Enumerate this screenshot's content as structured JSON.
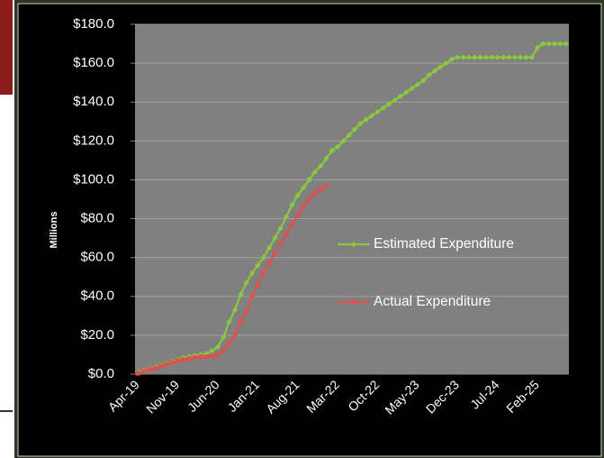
{
  "chart_data": {
    "type": "line",
    "y_label": "Millions",
    "categories": [
      "Apr-19",
      null,
      null,
      null,
      null,
      null,
      null,
      "Nov-19",
      null,
      null,
      null,
      null,
      null,
      null,
      "Jun-20",
      null,
      null,
      null,
      null,
      null,
      null,
      "Jan-21",
      null,
      null,
      null,
      null,
      null,
      null,
      "Aug-21",
      null,
      null,
      null,
      null,
      null,
      null,
      "Mar-22",
      null,
      null,
      null,
      null,
      null,
      null,
      "Oct-22",
      null,
      null,
      null,
      null,
      null,
      null,
      "May-23",
      null,
      null,
      null,
      null,
      null,
      null,
      "Dec-23",
      null,
      null,
      null,
      null,
      null,
      null,
      "Jul-24",
      null,
      null,
      null,
      null,
      null,
      null,
      "Feb-25",
      null,
      null,
      null,
      null,
      null
    ],
    "series": [
      {
        "name": "Estimated Expenditure",
        "color": "#8dc63f",
        "marker": "diamond",
        "values": [
          1,
          2,
          3,
          3.5,
          4.5,
          5.5,
          6.5,
          7.5,
          8.5,
          9,
          9.5,
          10,
          10.5,
          12,
          14,
          19,
          27,
          33,
          41,
          47,
          52,
          56,
          60,
          65,
          70,
          75,
          81,
          87,
          92,
          96,
          100,
          104,
          107,
          111,
          115,
          117,
          120,
          123,
          126,
          129,
          131,
          133,
          135,
          137,
          139,
          141,
          143,
          145,
          147,
          149,
          151,
          154,
          156,
          158,
          160,
          162,
          163,
          163,
          163,
          163,
          163,
          163,
          163,
          163,
          163,
          163,
          163,
          163,
          163,
          163,
          168,
          170,
          170,
          170,
          170,
          170
        ]
      },
      {
        "name": "Actual Expenditure",
        "color": "#d9534f",
        "marker": "square",
        "values": [
          0.5,
          1.5,
          2.5,
          3,
          4,
          5,
          6,
          7,
          7.5,
          8,
          8.5,
          9,
          9,
          9.5,
          10,
          12,
          16,
          20,
          27,
          32,
          40,
          46,
          52,
          57,
          62,
          67,
          72,
          77,
          82,
          86,
          90,
          93,
          95,
          97,
          null,
          null,
          null,
          null,
          null,
          null,
          null,
          null,
          null,
          null,
          null,
          null,
          null,
          null,
          null,
          null,
          null,
          null,
          null,
          null,
          null,
          null,
          null,
          null,
          null,
          null,
          null,
          null,
          null,
          null,
          null,
          null,
          null,
          null,
          null,
          null,
          null,
          null,
          null,
          null,
          null,
          null
        ]
      }
    ],
    "ylim": [
      0,
      180
    ],
    "yticks": [
      {
        "value": 0,
        "label": "$0.0"
      },
      {
        "value": 20,
        "label": "$20.0"
      },
      {
        "value": 40,
        "label": "$40.0"
      },
      {
        "value": 60,
        "label": "$60.0"
      },
      {
        "value": 80,
        "label": "$80.0"
      },
      {
        "value": 100,
        "label": "$100.0"
      },
      {
        "value": 120,
        "label": "$120.0"
      },
      {
        "value": 140,
        "label": "$140.0"
      },
      {
        "value": 160,
        "label": "$160.0"
      },
      {
        "value": 180,
        "label": "$180.0"
      }
    ],
    "grid": true,
    "legend": "right"
  }
}
